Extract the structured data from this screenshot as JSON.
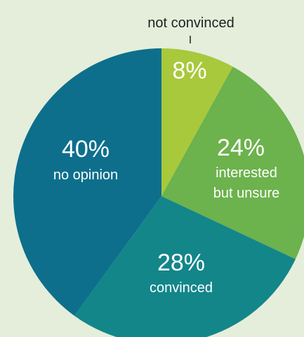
{
  "chart_data": {
    "type": "pie",
    "slices": [
      {
        "value": 8,
        "pct_label": "8%",
        "label_lines": [],
        "color": "#a8c93b",
        "outside_label": "not convinced"
      },
      {
        "value": 24,
        "pct_label": "24%",
        "label_lines": [
          "interested",
          "but unsure"
        ],
        "color": "#6cb24d"
      },
      {
        "value": 28,
        "pct_label": "28%",
        "label_lines": [
          "convinced"
        ],
        "color": "#13868a"
      },
      {
        "value": 40,
        "pct_label": "40%",
        "label_lines": [
          "no opinion"
        ],
        "color": "#0d6f8c"
      }
    ]
  },
  "colors": {
    "background": "#e4eedb",
    "label_text": "#ffffff",
    "outside_text": "#1f1f1f"
  }
}
